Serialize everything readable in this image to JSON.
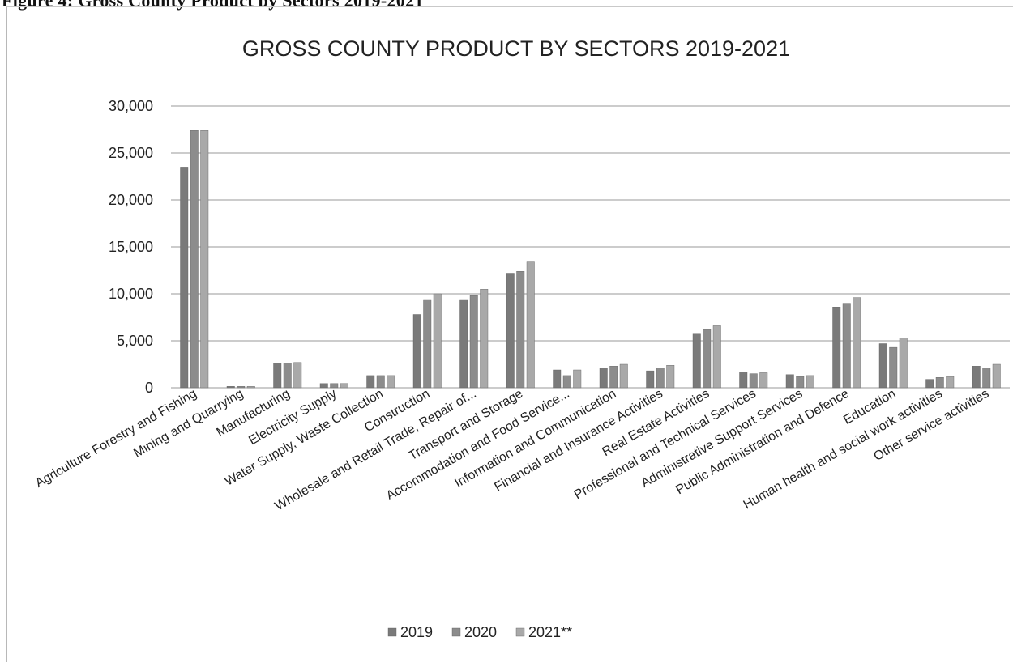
{
  "figure_caption": "Figure 4: Gross County Product by Sectors 2019-2021",
  "colors": {
    "series_2019": "#7a7a7a",
    "series_2020": "#8c8c8c",
    "series_2021": "#a9a9a9",
    "grid": "#9a9a9a"
  },
  "chart_data": {
    "type": "bar",
    "title": "GROSS COUNTY PRODUCT BY SECTORS 2019-2021",
    "xlabel": "",
    "ylabel": "",
    "ylim": [
      0,
      30000
    ],
    "yticks": [
      0,
      5000,
      10000,
      15000,
      20000,
      25000,
      30000
    ],
    "ytick_labels": [
      "0",
      "5,000",
      "10,000",
      "15,000",
      "20,000",
      "25,000",
      "30,000"
    ],
    "grid": true,
    "legend_position": "bottom",
    "categories": [
      "Agriculture Forestry and Fishing",
      "Mining and Quarrying",
      "Manufacturing",
      "Electricity Supply",
      "Water Supply, Waste Collection",
      "Construction",
      "Wholesale and Retail Trade, Repair of...",
      "Transport and Storage",
      "Accommodation and Food Service...",
      "Information and Communication",
      "Financial and Insurance Activities",
      "Real Estate Activities",
      "Professional and  Technical  Services",
      "Administrative Support Services",
      "Public Administration and Defence",
      "Education",
      "Human health and social work activities",
      "Other service activities"
    ],
    "series": [
      {
        "name": "2019",
        "values": [
          23500,
          150,
          2600,
          450,
          1300,
          7800,
          9400,
          12200,
          1900,
          2100,
          1800,
          5800,
          1700,
          1400,
          8600,
          4700,
          900,
          2300
        ]
      },
      {
        "name": "2020",
        "values": [
          27400,
          150,
          2600,
          450,
          1300,
          9400,
          9800,
          12400,
          1300,
          2300,
          2100,
          6200,
          1500,
          1200,
          9000,
          4300,
          1100,
          2100
        ]
      },
      {
        "name": "2021**",
        "values": [
          27400,
          150,
          2700,
          450,
          1300,
          10000,
          10500,
          13400,
          1900,
          2500,
          2400,
          6600,
          1600,
          1300,
          9600,
          5300,
          1200,
          2500
        ]
      }
    ]
  }
}
